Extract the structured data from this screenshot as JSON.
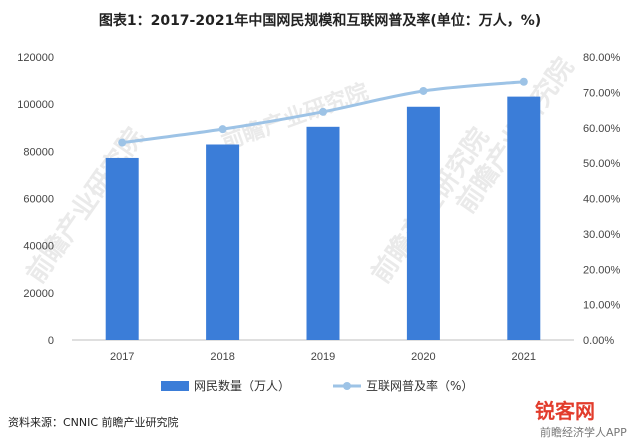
{
  "chart_data": {
    "type": "bar+line",
    "title": "图表1：2017-2021年中国网民规模和互联网普及率(单位：万人，%)",
    "categories": [
      "2017",
      "2018",
      "2019",
      "2020",
      "2021"
    ],
    "series": [
      {
        "name": "网民数量（万人）",
        "type": "bar",
        "axis": "left",
        "color": "#3b7dd8",
        "values": [
          77200,
          82900,
          90400,
          98900,
          103200
        ]
      },
      {
        "name": "互联网普及率（%）",
        "type": "line",
        "axis": "right",
        "color": "#9dc3e6",
        "values": [
          55.8,
          59.6,
          64.5,
          70.4,
          73.0
        ]
      }
    ],
    "y_left": {
      "min": 0,
      "max": 120000,
      "ticks": [
        "0",
        "20000",
        "40000",
        "60000",
        "80000",
        "100000",
        "120000"
      ]
    },
    "y_right": {
      "min": 0,
      "max": 80,
      "ticks": [
        "0.00%",
        "10.00%",
        "20.00%",
        "30.00%",
        "40.00%",
        "50.00%",
        "60.00%",
        "70.00%",
        "80.00%"
      ]
    },
    "grid": false,
    "legend": "bottom",
    "source": "资料来源：CNNIC 前瞻产业研究院"
  },
  "watermark": {
    "text": "前瞻产业研究院",
    "logo_text": "锐客网",
    "app_text": "前瞻经济学人APP"
  }
}
